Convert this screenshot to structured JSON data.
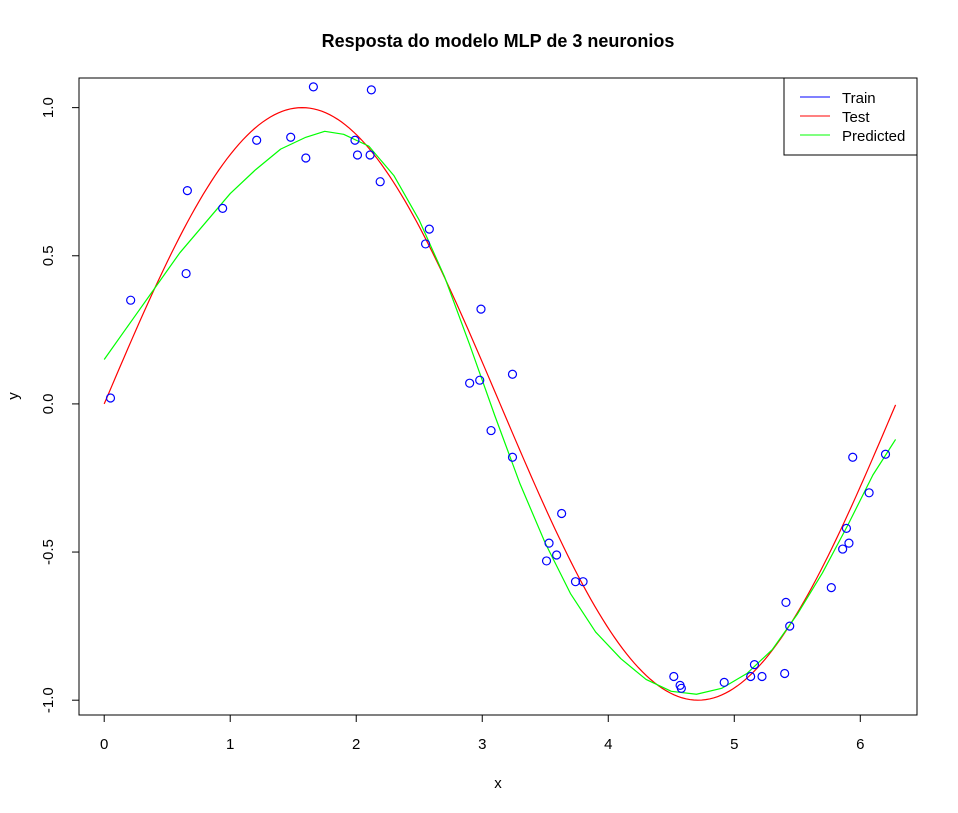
{
  "chart_data": {
    "type": "scatter",
    "title": "Resposta do modelo MLP de 3 neuronios",
    "xlabel": "x",
    "ylabel": "y",
    "xlim": [
      -0.2,
      6.45
    ],
    "ylim": [
      -1.05,
      1.1
    ],
    "x_ticks": [
      0,
      1,
      2,
      3,
      4,
      5,
      6
    ],
    "y_ticks": [
      -1.0,
      -0.5,
      0.0,
      0.5,
      1.0
    ],
    "x_tick_labels": [
      "0",
      "1",
      "2",
      "3",
      "4",
      "5",
      "6"
    ],
    "y_tick_labels": [
      "-1.0",
      "-0.5",
      "0.0",
      "0.5",
      "1.0"
    ],
    "grid": false,
    "legend_position": "top-right",
    "legend": [
      {
        "label": "Train",
        "color": "#0000ff"
      },
      {
        "label": "Test",
        "color": "#ff0000"
      },
      {
        "label": "Predicted",
        "color": "#00ff00"
      }
    ],
    "series": [
      {
        "name": "Train",
        "kind": "points",
        "color": "#0000ff",
        "points": [
          [
            0.05,
            0.02
          ],
          [
            0.21,
            0.35
          ],
          [
            0.65,
            0.44
          ],
          [
            0.66,
            0.72
          ],
          [
            0.94,
            0.66
          ],
          [
            1.21,
            0.89
          ],
          [
            1.48,
            0.9
          ],
          [
            1.6,
            0.83
          ],
          [
            1.66,
            1.07
          ],
          [
            1.99,
            0.89
          ],
          [
            2.01,
            0.84
          ],
          [
            2.11,
            0.84
          ],
          [
            2.12,
            1.06
          ],
          [
            2.19,
            0.75
          ],
          [
            2.55,
            0.54
          ],
          [
            2.58,
            0.59
          ],
          [
            2.9,
            0.07
          ],
          [
            2.98,
            0.08
          ],
          [
            2.99,
            0.32
          ],
          [
            3.07,
            -0.09
          ],
          [
            3.24,
            -0.18
          ],
          [
            3.24,
            0.1
          ],
          [
            3.51,
            -0.53
          ],
          [
            3.53,
            -0.47
          ],
          [
            3.59,
            -0.51
          ],
          [
            3.63,
            -0.37
          ],
          [
            3.74,
            -0.6
          ],
          [
            3.8,
            -0.6
          ],
          [
            4.52,
            -0.92
          ],
          [
            4.57,
            -0.95
          ],
          [
            4.58,
            -0.96
          ],
          [
            4.92,
            -0.94
          ],
          [
            5.13,
            -0.92
          ],
          [
            5.16,
            -0.88
          ],
          [
            5.22,
            -0.92
          ],
          [
            5.4,
            -0.91
          ],
          [
            5.41,
            -0.67
          ],
          [
            5.44,
            -0.75
          ],
          [
            5.77,
            -0.62
          ],
          [
            5.86,
            -0.49
          ],
          [
            5.89,
            -0.42
          ],
          [
            5.91,
            -0.47
          ],
          [
            5.94,
            -0.18
          ],
          [
            6.07,
            -0.3
          ],
          [
            6.2,
            -0.17
          ]
        ]
      },
      {
        "name": "Test",
        "kind": "line",
        "color": "#ff0000",
        "function": "sin",
        "x_range": [
          0,
          6.28
        ]
      },
      {
        "name": "Predicted",
        "kind": "line",
        "color": "#00ff00",
        "points": [
          [
            0.0,
            0.15
          ],
          [
            0.2,
            0.27
          ],
          [
            0.4,
            0.39
          ],
          [
            0.6,
            0.51
          ],
          [
            0.8,
            0.61
          ],
          [
            1.0,
            0.71
          ],
          [
            1.2,
            0.79
          ],
          [
            1.4,
            0.86
          ],
          [
            1.6,
            0.9
          ],
          [
            1.75,
            0.92
          ],
          [
            1.9,
            0.91
          ],
          [
            2.1,
            0.87
          ],
          [
            2.3,
            0.77
          ],
          [
            2.5,
            0.62
          ],
          [
            2.7,
            0.43
          ],
          [
            2.9,
            0.2
          ],
          [
            3.1,
            -0.04
          ],
          [
            3.3,
            -0.27
          ],
          [
            3.5,
            -0.47
          ],
          [
            3.7,
            -0.64
          ],
          [
            3.9,
            -0.77
          ],
          [
            4.1,
            -0.86
          ],
          [
            4.3,
            -0.93
          ],
          [
            4.5,
            -0.97
          ],
          [
            4.7,
            -0.98
          ],
          [
            4.9,
            -0.96
          ],
          [
            5.1,
            -0.91
          ],
          [
            5.3,
            -0.83
          ],
          [
            5.5,
            -0.71
          ],
          [
            5.7,
            -0.57
          ],
          [
            5.9,
            -0.41
          ],
          [
            6.1,
            -0.24
          ],
          [
            6.28,
            -0.12
          ]
        ]
      }
    ]
  }
}
